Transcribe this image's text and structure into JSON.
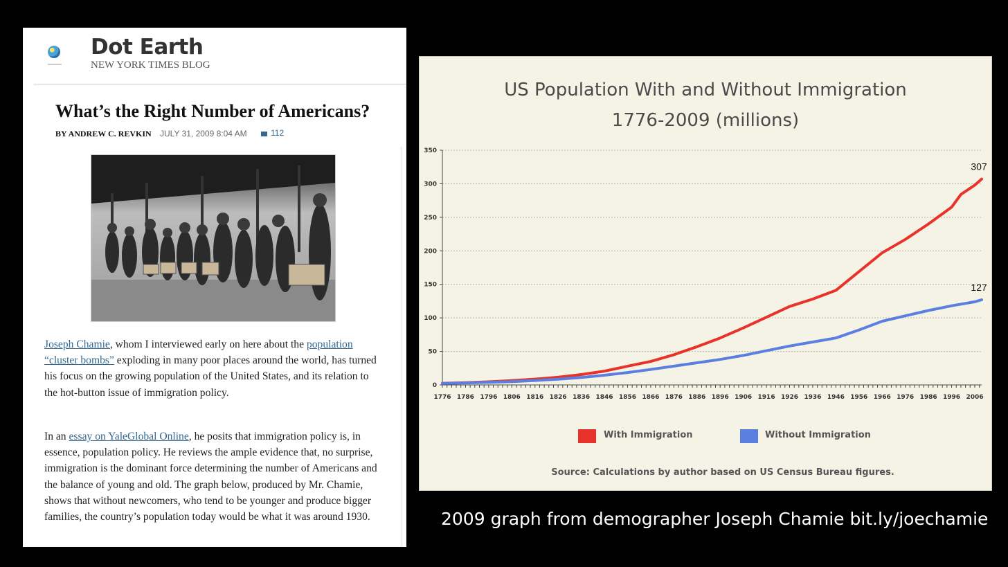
{
  "blog": {
    "name": "Dot Earth",
    "subtitle": "NEW YORK TIMES BLOG",
    "article_title": "What’s the Right Number of Americans?",
    "byline": "BY ANDREW C. REVKIN",
    "date": "JULY 31, 2009 8:04 AM",
    "comments": "112",
    "paragraph1": {
      "link1": "Joseph Chamie",
      "text1": ", whom I interviewed early on here about the ",
      "link2": "population “cluster bombs”",
      "text2": " exploding in many poor places around the world, has turned his focus on the growing population of the United States, and its relation to the hot-button issue of immigration policy."
    },
    "paragraph2": {
      "text1": "In an ",
      "link1": "essay on YaleGlobal Online",
      "text2": ", he posits that immigration policy is, in essence, population policy. He reviews the ample evidence that, no surprise, immigration is the dominant force determining the number of Americans and the balance of young and old. The graph below, produced by Mr. Chamie, shows that without newcomers, who tend to be younger and produce bigger families, the country’s population today would be what it was around 1930."
    }
  },
  "caption": "2009 graph from demographer Joseph Chamie bit.ly/joechamie",
  "chart_data": {
    "type": "line",
    "title_line1": "US Population With and Without Immigration",
    "title_line2": "1776-2009 (millions)",
    "source": "Source: Calculations by author based on US Census Bureau figures.",
    "xlim": [
      1776,
      2009
    ],
    "ylim": [
      0,
      350
    ],
    "x_ticks": [
      "1776",
      "1786",
      "1796",
      "1806",
      "1816",
      "1826",
      "1836",
      "1846",
      "1856",
      "1866",
      "1876",
      "1886",
      "1896",
      "1906",
      "1916",
      "1926",
      "1936",
      "1946",
      "1956",
      "1966",
      "1976",
      "1986",
      "1996",
      "2006"
    ],
    "y_ticks": [
      "0",
      "50",
      "100",
      "150",
      "200",
      "250",
      "300",
      "350"
    ],
    "grid": true,
    "legend_position": "bottom",
    "series": [
      {
        "name": "With Immigration",
        "color": "#e8322a",
        "end_label": "307",
        "x": [
          1776,
          1786,
          1796,
          1806,
          1816,
          1826,
          1836,
          1846,
          1856,
          1866,
          1876,
          1886,
          1896,
          1906,
          1916,
          1926,
          1936,
          1946,
          1956,
          1966,
          1976,
          1986,
          1996,
          2000,
          2006,
          2009
        ],
        "y": [
          2.5,
          3.4,
          4.6,
          6.4,
          8.7,
          11.5,
          15.5,
          20.5,
          28,
          35,
          45,
          57,
          70,
          85,
          101,
          117,
          128,
          141,
          169,
          197,
          217,
          240,
          265,
          284,
          298,
          307
        ]
      },
      {
        "name": "Without Immigration",
        "color": "#5a7fe0",
        "end_label": "127",
        "x": [
          1776,
          1786,
          1796,
          1806,
          1816,
          1826,
          1836,
          1846,
          1856,
          1866,
          1876,
          1886,
          1896,
          1906,
          1916,
          1926,
          1936,
          1946,
          1956,
          1966,
          1976,
          1986,
          1996,
          2006,
          2009
        ],
        "y": [
          2.3,
          3.0,
          3.8,
          5.0,
          6.6,
          8.6,
          11.2,
          14.5,
          18.5,
          23,
          28,
          33,
          38,
          44,
          51,
          58,
          64,
          70,
          82,
          95,
          103,
          111,
          118,
          124,
          127
        ]
      }
    ]
  }
}
